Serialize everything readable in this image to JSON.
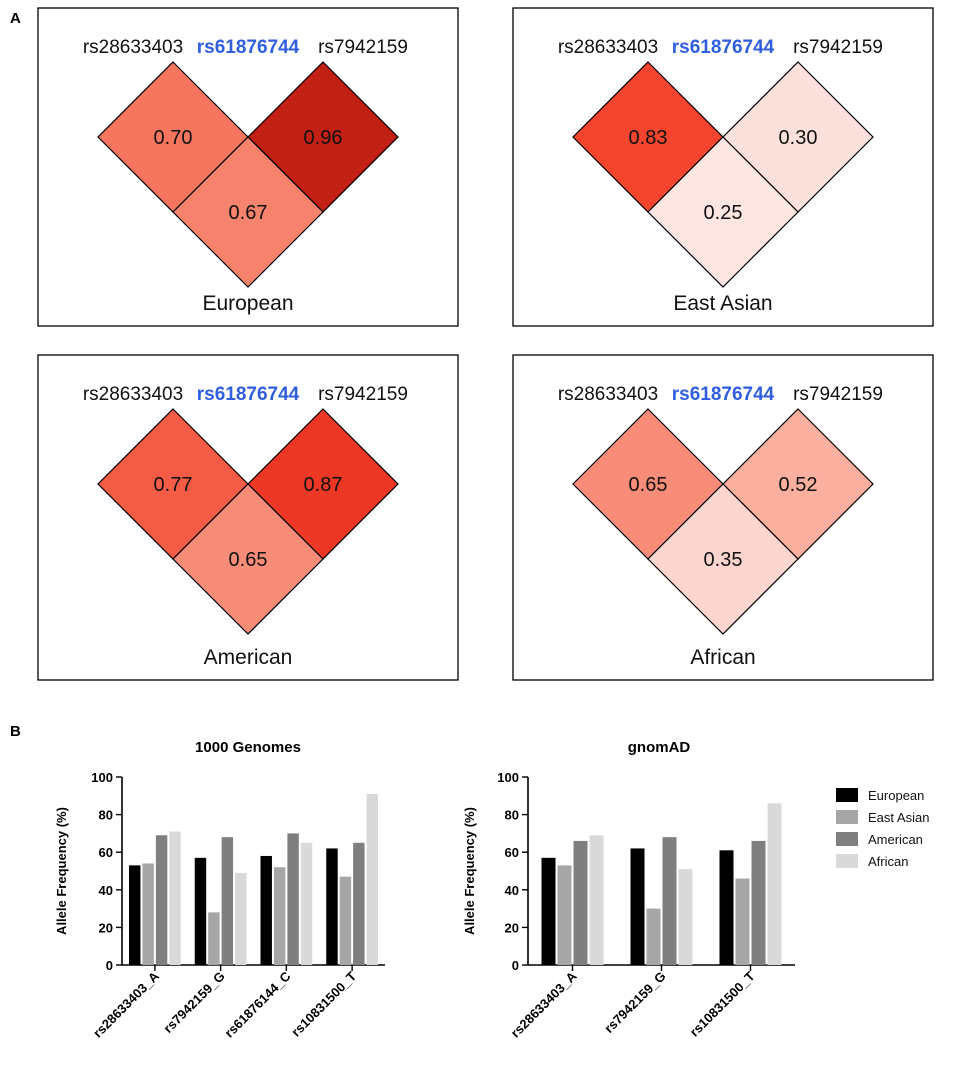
{
  "panel_labels": {
    "a": "A",
    "b": "B"
  },
  "colors": {
    "focus_snp": "#2f5fe0",
    "cell_stroke": "#000000",
    "European": "#000000",
    "East Asian": "#a6a6a6",
    "American": "#7f7f7f",
    "African": "#d9d9d9"
  },
  "chart_data": [
    {
      "type": "heatmap",
      "title": "European",
      "snps": [
        "rs28633403",
        "rs61876744",
        "rs7942159"
      ],
      "focus_snp": "rs61876744",
      "cells": [
        {
          "pair": [
            "rs28633403",
            "rs61876744"
          ],
          "value": 0.7
        },
        {
          "pair": [
            "rs61876744",
            "rs7942159"
          ],
          "value": 0.96
        },
        {
          "pair": [
            "rs28633403",
            "rs7942159"
          ],
          "value": 0.67
        }
      ]
    },
    {
      "type": "heatmap",
      "title": "East Asian",
      "snps": [
        "rs28633403",
        "rs61876744",
        "rs7942159"
      ],
      "focus_snp": "rs61876744",
      "cells": [
        {
          "pair": [
            "rs28633403",
            "rs61876744"
          ],
          "value": 0.83
        },
        {
          "pair": [
            "rs61876744",
            "rs7942159"
          ],
          "value": 0.3
        },
        {
          "pair": [
            "rs28633403",
            "rs7942159"
          ],
          "value": 0.25
        }
      ]
    },
    {
      "type": "heatmap",
      "title": "American",
      "snps": [
        "rs28633403",
        "rs61876744",
        "rs7942159"
      ],
      "focus_snp": "rs61876744",
      "cells": [
        {
          "pair": [
            "rs28633403",
            "rs61876744"
          ],
          "value": 0.77
        },
        {
          "pair": [
            "rs61876744",
            "rs7942159"
          ],
          "value": 0.87
        },
        {
          "pair": [
            "rs28633403",
            "rs7942159"
          ],
          "value": 0.65
        }
      ]
    },
    {
      "type": "heatmap",
      "title": "African",
      "snps": [
        "rs28633403",
        "rs61876744",
        "rs7942159"
      ],
      "focus_snp": "rs61876744",
      "cells": [
        {
          "pair": [
            "rs28633403",
            "rs61876744"
          ],
          "value": 0.65
        },
        {
          "pair": [
            "rs61876744",
            "rs7942159"
          ],
          "value": 0.52
        },
        {
          "pair": [
            "rs28633403",
            "rs7942159"
          ],
          "value": 0.35
        }
      ]
    },
    {
      "type": "bar",
      "title": "1000 Genomes",
      "ylabel": "Allele Frequency (%)",
      "xlabel": "",
      "ylim": [
        0,
        100
      ],
      "yticks": [
        0,
        20,
        40,
        60,
        80,
        100
      ],
      "categories": [
        "rs28633403_A",
        "rs7942159_G",
        "rs61876144_C",
        "rs10831500_T"
      ],
      "series": [
        {
          "name": "European",
          "values": [
            53,
            57,
            58,
            62
          ]
        },
        {
          "name": "East Asian",
          "values": [
            54,
            28,
            52,
            47
          ]
        },
        {
          "name": "American",
          "values": [
            69,
            68,
            70,
            65
          ]
        },
        {
          "name": "African",
          "values": [
            71,
            49,
            65,
            91
          ]
        }
      ]
    },
    {
      "type": "bar",
      "title": "gnomAD",
      "ylabel": "Allele Frequency (%)",
      "xlabel": "",
      "ylim": [
        0,
        100
      ],
      "yticks": [
        0,
        20,
        40,
        60,
        80,
        100
      ],
      "categories": [
        "rs28633403_A",
        "rs7942159_G",
        "rs10831500_T"
      ],
      "series": [
        {
          "name": "European",
          "values": [
            57,
            62,
            61
          ]
        },
        {
          "name": "East Asian",
          "values": [
            53,
            30,
            46
          ]
        },
        {
          "name": "American",
          "values": [
            66,
            68,
            66
          ]
        },
        {
          "name": "African",
          "values": [
            69,
            51,
            86
          ]
        }
      ],
      "legend": {
        "position": "right",
        "entries": [
          "European",
          "East Asian",
          "American",
          "African"
        ]
      }
    }
  ]
}
